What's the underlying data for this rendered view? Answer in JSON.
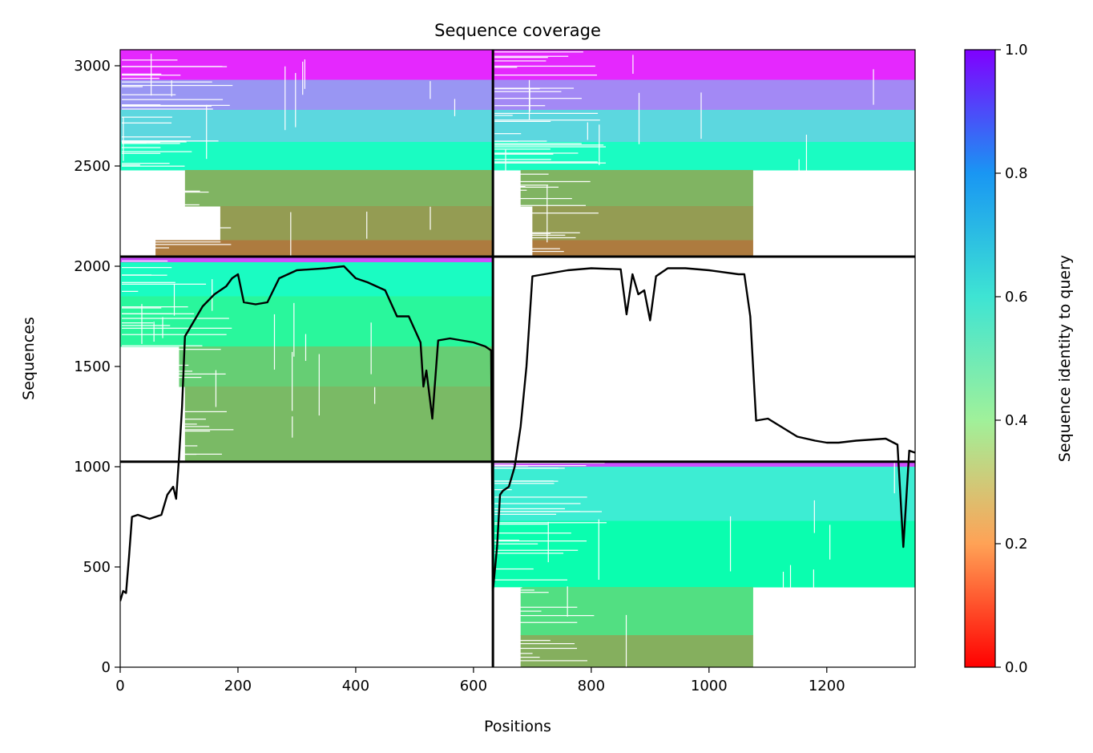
{
  "chart_data": {
    "type": "heatmap",
    "title": "Sequence coverage",
    "xlabel": "Positions",
    "ylabel": "Sequences",
    "xlim": [
      0,
      1350
    ],
    "ylim": [
      0,
      3080
    ],
    "x_ticks": [
      0,
      200,
      400,
      600,
      800,
      1000,
      1200
    ],
    "y_ticks": [
      0,
      500,
      1000,
      1500,
      2000,
      2500,
      3000
    ],
    "grid": false,
    "segment_boundary_x": 633,
    "segment_boundaries_y": [
      1025,
      2048
    ],
    "colorbar": {
      "label": "Sequence identity to query",
      "colormap": "rainbow_r",
      "range": [
        0.0,
        1.0
      ],
      "ticks": [
        "0.0",
        "0.2",
        "0.4",
        "0.6",
        "0.8",
        "1.0"
      ]
    },
    "blocks": [
      {
        "name": "top-left",
        "x0": 0,
        "x1": 633,
        "y0": 2048,
        "y1": 3080,
        "bands": [
          {
            "y0": 2930,
            "y1": 3080,
            "identity": 0.95,
            "x0": 0,
            "x1": 633
          },
          {
            "y0": 2780,
            "y1": 2930,
            "identity": 0.8,
            "x0": 0,
            "x1": 633
          },
          {
            "y0": 2620,
            "y1": 2780,
            "identity": 0.68,
            "x0": 0,
            "x1": 633
          },
          {
            "y0": 2480,
            "y1": 2620,
            "identity": 0.55,
            "x0": 0,
            "x1": 633
          },
          {
            "y0": 2300,
            "y1": 2480,
            "identity": 0.25,
            "x0": 110,
            "x1": 633
          },
          {
            "y0": 2130,
            "y1": 2300,
            "identity": 0.21,
            "x0": 170,
            "x1": 633
          },
          {
            "y0": 2048,
            "y1": 2130,
            "identity": 0.16,
            "x0": 60,
            "x1": 633
          }
        ]
      },
      {
        "name": "top-right",
        "x0": 633,
        "x1": 1350,
        "y0": 2048,
        "y1": 3080,
        "bands": [
          {
            "y0": 2930,
            "y1": 3080,
            "identity": 0.95,
            "x0": 633,
            "x1": 1350
          },
          {
            "y0": 2780,
            "y1": 2930,
            "identity": 0.82,
            "x0": 633,
            "x1": 1350
          },
          {
            "y0": 2620,
            "y1": 2780,
            "identity": 0.68,
            "x0": 633,
            "x1": 1350
          },
          {
            "y0": 2480,
            "y1": 2620,
            "identity": 0.55,
            "x0": 633,
            "x1": 1350
          },
          {
            "y0": 2300,
            "y1": 2480,
            "identity": 0.25,
            "x0": 680,
            "x1": 1075
          },
          {
            "y0": 2130,
            "y1": 2300,
            "identity": 0.21,
            "x0": 700,
            "x1": 1075
          },
          {
            "y0": 2048,
            "y1": 2130,
            "identity": 0.16,
            "x0": 700,
            "x1": 1075
          }
        ]
      },
      {
        "name": "middle-left",
        "x0": 0,
        "x1": 633,
        "y0": 1025,
        "y1": 2048,
        "bands": [
          {
            "y0": 2020,
            "y1": 2048,
            "identity": 0.9,
            "x0": 0,
            "x1": 633
          },
          {
            "y0": 1850,
            "y1": 2020,
            "identity": 0.55,
            "x0": 0,
            "x1": 633
          },
          {
            "y0": 1600,
            "y1": 1850,
            "identity": 0.42,
            "x0": 0,
            "x1": 633
          },
          {
            "y0": 1400,
            "y1": 1600,
            "identity": 0.3,
            "x0": 100,
            "x1": 633
          },
          {
            "y0": 1025,
            "y1": 1400,
            "identity": 0.26,
            "x0": 110,
            "x1": 633
          }
        ]
      },
      {
        "name": "bottom-right",
        "x0": 633,
        "x1": 1350,
        "y0": 0,
        "y1": 1025,
        "bands": [
          {
            "y0": 1000,
            "y1": 1025,
            "identity": 0.9,
            "x0": 633,
            "x1": 1350
          },
          {
            "y0": 730,
            "y1": 1000,
            "identity": 0.62,
            "x0": 633,
            "x1": 1350
          },
          {
            "y0": 400,
            "y1": 730,
            "identity": 0.48,
            "x0": 633,
            "x1": 1350
          },
          {
            "y0": 160,
            "y1": 400,
            "identity": 0.34,
            "x0": 680,
            "x1": 1075
          },
          {
            "y0": 0,
            "y1": 160,
            "identity": 0.24,
            "x0": 680,
            "x1": 1075
          }
        ]
      }
    ],
    "coverage_line": {
      "color": "#000000",
      "x": [
        0,
        5,
        10,
        15,
        20,
        30,
        50,
        70,
        80,
        90,
        95,
        100,
        105,
        110,
        120,
        140,
        160,
        180,
        190,
        200,
        210,
        230,
        250,
        270,
        300,
        350,
        380,
        400,
        420,
        450,
        470,
        490,
        510,
        515,
        520,
        530,
        540,
        560,
        600,
        620,
        630,
        633,
        640,
        645,
        650,
        660,
        670,
        680,
        690,
        700,
        720,
        760,
        800,
        850,
        860,
        870,
        880,
        890,
        900,
        910,
        930,
        960,
        1000,
        1050,
        1060,
        1070,
        1080,
        1100,
        1150,
        1180,
        1200,
        1220,
        1250,
        1300,
        1320,
        1330,
        1340,
        1350
      ],
      "y": [
        330,
        380,
        370,
        550,
        750,
        760,
        740,
        760,
        860,
        900,
        840,
        1050,
        1300,
        1650,
        1700,
        1800,
        1860,
        1900,
        1940,
        1960,
        1820,
        1810,
        1820,
        1940,
        1980,
        1990,
        2000,
        1940,
        1920,
        1880,
        1750,
        1750,
        1620,
        1400,
        1480,
        1240,
        1630,
        1640,
        1620,
        1600,
        1580,
        380,
        600,
        860,
        880,
        900,
        1000,
        1200,
        1500,
        1950,
        1960,
        1980,
        1990,
        1985,
        1760,
        1960,
        1860,
        1880,
        1730,
        1950,
        1990,
        1990,
        1980,
        1960,
        1960,
        1750,
        1230,
        1240,
        1150,
        1130,
        1120,
        1120,
        1130,
        1140,
        1110,
        600,
        1080,
        1070
      ]
    }
  }
}
